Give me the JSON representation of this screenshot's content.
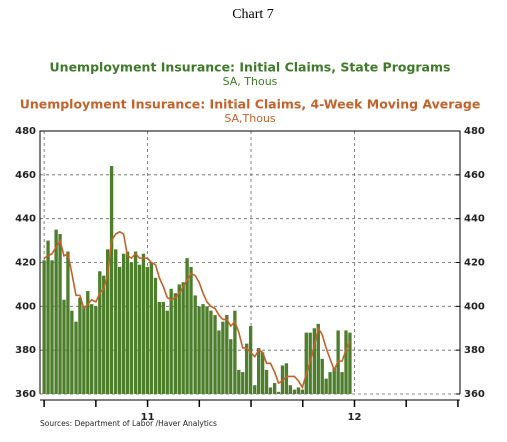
{
  "chart_data": {
    "type": "bar",
    "title": "Chart 7",
    "source": "Sources: Department of Labor /Haver Analytics",
    "x": [
      2010.5,
      2010.519,
      2010.538,
      2010.558,
      2010.577,
      2010.596,
      2010.615,
      2010.634,
      2010.654,
      2010.673,
      2010.692,
      2010.711,
      2010.73,
      2010.75,
      2010.769,
      2010.788,
      2010.807,
      2010.826,
      2010.846,
      2010.865,
      2010.884,
      2010.903,
      2010.922,
      2010.942,
      2010.961,
      2010.98,
      2010.999,
      2011.018,
      2011.038,
      2011.057,
      2011.076,
      2011.095,
      2011.114,
      2011.134,
      2011.153,
      2011.172,
      2011.191,
      2011.21,
      2011.23,
      2011.249,
      2011.268,
      2011.287,
      2011.306,
      2011.326,
      2011.345,
      2011.364,
      2011.383,
      2011.402,
      2011.422,
      2011.441,
      2011.46,
      2011.479,
      2011.498,
      2011.518,
      2011.537,
      2011.556,
      2011.575,
      2011.594,
      2011.614,
      2011.633,
      2011.652,
      2011.671,
      2011.69,
      2011.71,
      2011.729,
      2011.748,
      2011.767,
      2011.786,
      2011.806,
      2011.825,
      2011.844,
      2011.863,
      2011.882,
      2011.902,
      2011.921,
      2011.94,
      2011.959,
      2011.978
    ],
    "series": [
      {
        "name": "Unemployment Insurance: Initial Claims, State Programs",
        "unit": "SA, Thous",
        "type": "bar",
        "color": "#4d7e2b",
        "values": [
          421,
          430,
          421,
          435,
          433,
          403,
          425,
          398,
          393,
          404,
          400,
          407,
          401,
          400,
          416,
          414,
          426,
          464,
          426,
          418,
          424,
          425,
          420,
          425,
          419,
          424,
          418,
          420,
          413,
          402,
          402,
          398,
          408,
          406,
          410,
          411,
          422,
          418,
          405,
          400,
          401,
          400,
          398,
          396,
          389,
          393,
          396,
          385,
          398,
          371,
          370,
          383,
          391,
          364,
          381,
          379,
          371,
          363,
          365,
          361,
          373,
          374,
          364,
          362,
          363,
          362,
          388,
          388,
          390,
          392,
          376,
          367,
          370,
          372,
          389,
          370,
          389,
          388
        ]
      },
      {
        "name": "Unemployment Insurance: Initial Claims, 4-Week Moving Average",
        "unit": "SA,Thous",
        "type": "line",
        "color": "#c2632c",
        "values": [
          422,
          423,
          424,
          427,
          430,
          423,
          424,
          415,
          405,
          405,
          399,
          401,
          403,
          402,
          406,
          408,
          414,
          430,
          433,
          434,
          433,
          423,
          422,
          424,
          422,
          422,
          422,
          420,
          419,
          413,
          409,
          404,
          403,
          404,
          406,
          409,
          412,
          415,
          414,
          411,
          406,
          402,
          400,
          399,
          396,
          394,
          394,
          391,
          393,
          388,
          381,
          381,
          379,
          377,
          380,
          379,
          374,
          374,
          370,
          365,
          366,
          368,
          368,
          368,
          366,
          363,
          369,
          375,
          382,
          390,
          387,
          381,
          376,
          371,
          375,
          375,
          380,
          384
        ]
      }
    ],
    "xlim": [
      2010.48,
      2012.51
    ],
    "xticks": [
      {
        "value": 2011,
        "label": "11"
      },
      {
        "value": 2012,
        "label": "12"
      }
    ],
    "xminor_ticks": [
      2010.5,
      2010.75,
      2011,
      2011.25,
      2011.5,
      2011.75,
      2012,
      2012.25,
      2012.5
    ],
    "xgrid": [
      2010.5,
      2011,
      2011.5,
      2012
    ],
    "ylim": [
      360,
      480
    ],
    "yticks": [
      360,
      380,
      400,
      420,
      440,
      460,
      480
    ],
    "y2lim": [
      360,
      480
    ],
    "y2ticks": [
      360,
      380,
      400,
      420,
      440,
      460,
      480
    ],
    "grid": true
  }
}
